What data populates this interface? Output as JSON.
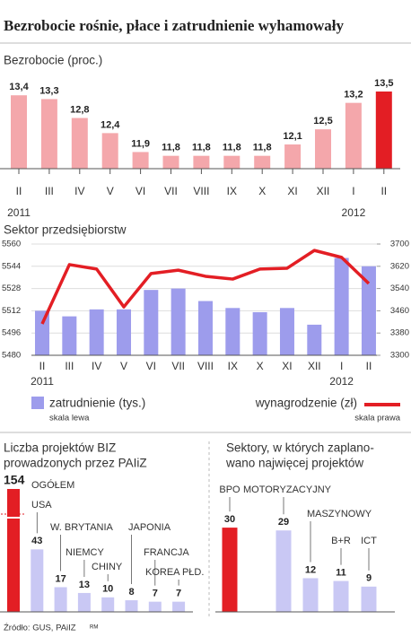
{
  "title": "Bezrobocie rośnie, płace i zatrudnienie wyhamowały",
  "footer": {
    "source": "Źródło: GUS, PAiIZ",
    "mark": "RM"
  },
  "chart_data": [
    {
      "type": "bar",
      "title": "Bezrobocie (proc.)",
      "categories": [
        "II",
        "III",
        "IV",
        "V",
        "VI",
        "VII",
        "VIII",
        "IX",
        "X",
        "XI",
        "XII",
        "I",
        "II"
      ],
      "year_labels": [
        "2011",
        null,
        null,
        null,
        null,
        null,
        null,
        null,
        null,
        null,
        null,
        "2012",
        null
      ],
      "values": [
        13.4,
        13.3,
        12.8,
        12.4,
        11.9,
        11.8,
        11.8,
        11.8,
        11.8,
        12.1,
        12.5,
        13.2,
        13.5
      ],
      "value_labels": [
        "13,4",
        "13,3",
        "12,8",
        "12,4",
        "11,9",
        "11,8",
        "11,8",
        "11,8",
        "11,8",
        "12,1",
        "12,5",
        "13,2",
        "13,5"
      ],
      "colors": [
        "#f4a7ab",
        "#f4a7ab",
        "#f4a7ab",
        "#f4a7ab",
        "#f4a7ab",
        "#f4a7ab",
        "#f4a7ab",
        "#f4a7ab",
        "#f4a7ab",
        "#f4a7ab",
        "#f4a7ab",
        "#f4a7ab",
        "#e31e24"
      ]
    },
    {
      "type": "combo",
      "title": "Sektor przedsiębiorstw",
      "categories": [
        "II",
        "III",
        "IV",
        "V",
        "VI",
        "VII",
        "VIII",
        "IX",
        "X",
        "XI",
        "XII",
        "I",
        "II"
      ],
      "year_labels": [
        "2011",
        null,
        null,
        null,
        null,
        null,
        null,
        null,
        null,
        null,
        null,
        "2012",
        null
      ],
      "ylim": [
        5480,
        5560
      ],
      "yticks": [
        5480,
        5496,
        5512,
        5528,
        5544,
        5560
      ],
      "y2lim": [
        3300,
        3700
      ],
      "y2ticks": [
        3300,
        3380,
        3460,
        3540,
        3620,
        3700
      ],
      "grid": true,
      "series": [
        {
          "name": "zatrudnienie (tys.)",
          "note": "skala lewa",
          "type": "bar",
          "color": "#9d9cec",
          "values": [
            5512,
            5508,
            5513,
            5513,
            5527,
            5528,
            5519,
            5514,
            5511,
            5514,
            5502,
            5550,
            5544
          ]
        },
        {
          "name": "wynagrodzenie (zł)",
          "note": "skala prawa",
          "type": "line",
          "axis": "y2",
          "color": "#e31e24",
          "values": [
            3413,
            3626,
            3610,
            3474,
            3594,
            3606,
            3584,
            3574,
            3610,
            3613,
            3677,
            3652,
            3558
          ]
        }
      ]
    },
    {
      "type": "bar",
      "title": [
        "Liczba projektów BIZ",
        "prowadzonych przez PAIiZ"
      ],
      "categories": [
        "OGÓŁEM",
        "USA",
        "W. BRYTANIA",
        "NIEMCY",
        "CHINY",
        "JAPONIA",
        "FRANCJA",
        "KOREA PŁD."
      ],
      "values": [
        154,
        43,
        17,
        13,
        10,
        8,
        7,
        7
      ],
      "colors": [
        "#e31e24",
        "#c9c8f4",
        "#c9c8f4",
        "#c9c8f4",
        "#c9c8f4",
        "#c9c8f4",
        "#c9c8f4",
        "#c9c8f4"
      ]
    },
    {
      "type": "bar",
      "title": [
        "Sektory, w których zaplano-",
        "wano najwięcej projektów"
      ],
      "categories": [
        "BPO",
        "MOTORYZACYJNY",
        "MASZYNOWY",
        "B+R",
        "ICT"
      ],
      "values": [
        30,
        29,
        12,
        11,
        9
      ],
      "colors": [
        "#e31e24",
        "#c9c8f4",
        "#c9c8f4",
        "#c9c8f4",
        "#c9c8f4"
      ]
    }
  ]
}
